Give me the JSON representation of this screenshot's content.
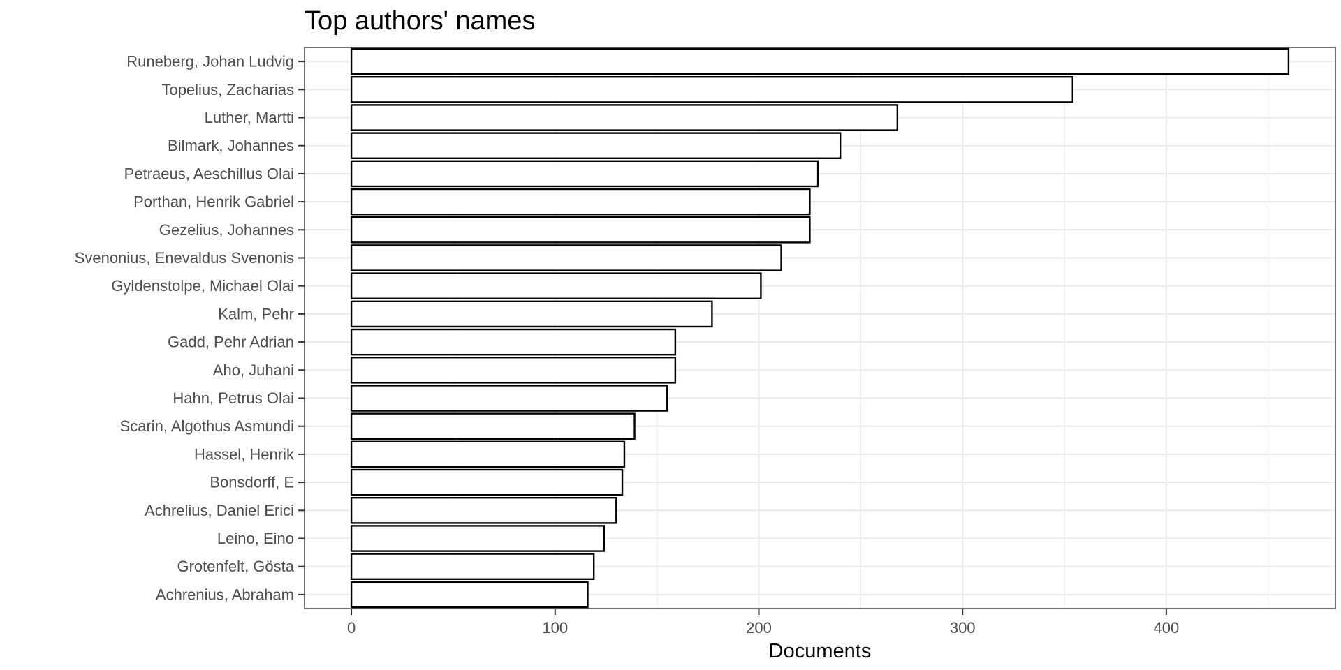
{
  "chart_data": {
    "type": "bar",
    "orientation": "horizontal",
    "title": "Top authors' names",
    "xlabel": "Documents",
    "ylabel": "",
    "categories": [
      "Runeberg, Johan Ludvig",
      "Topelius, Zacharias",
      "Luther, Martti",
      "Bilmark, Johannes",
      "Petraeus, Aeschillus Olai",
      "Porthan, Henrik Gabriel",
      "Gezelius, Johannes",
      "Svenonius, Enevaldus Svenonis",
      "Gyldenstolpe, Michael Olai",
      "Kalm, Pehr",
      "Gadd, Pehr Adrian",
      "Aho, Juhani",
      "Hahn, Petrus Olai",
      "Scarin, Algothus Asmundi",
      "Hassel, Henrik",
      "Bonsdorff, E",
      "Achrelius, Daniel Erici",
      "Leino, Eino",
      "Grotenfelt, Gösta",
      "Achrenius, Abraham"
    ],
    "values": [
      460,
      354,
      268,
      240,
      229,
      225,
      225,
      211,
      201,
      177,
      159,
      159,
      155,
      139,
      134,
      133,
      130,
      124,
      119,
      116
    ],
    "xlim": [
      -23,
      483
    ],
    "xticks": [
      0,
      100,
      200,
      300,
      400
    ],
    "xtick_labels": [
      "0",
      "100",
      "200",
      "300",
      "400"
    ],
    "grid": true,
    "bar_fill": "#ffffff",
    "bar_outline": "#000000",
    "theme": "bw"
  }
}
